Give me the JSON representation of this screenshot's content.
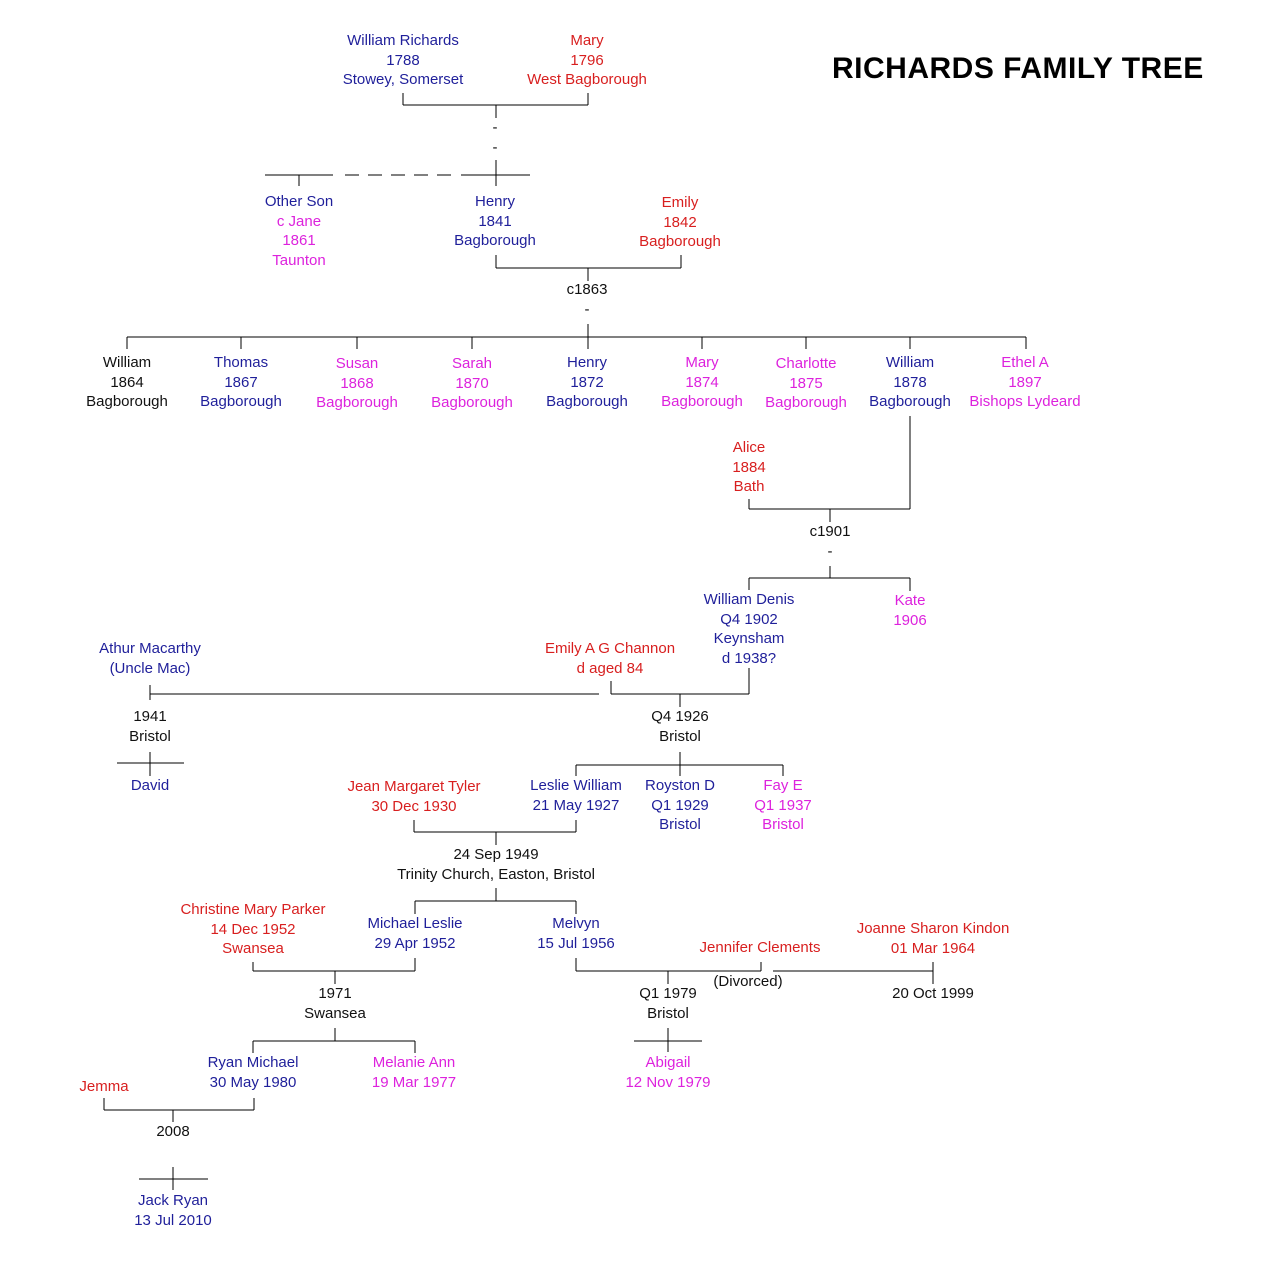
{
  "title": "RICHARDS FAMILY TREE",
  "colors": {
    "male": "#1f1f9a",
    "female": "#d81f1f",
    "daughter": "#dd22dd",
    "neutral": "#111111",
    "lines": "#000000"
  },
  "people": [
    {
      "id": "william-richards",
      "lines": [
        "William Richards",
        "1788",
        "Stowey, Somerset"
      ],
      "color": "male"
    },
    {
      "id": "mary-1796",
      "lines": [
        "Mary",
        "1796",
        "West Bagborough"
      ],
      "color": "female"
    },
    {
      "id": "other-son",
      "lines": [
        "Other Son",
        "c Jane",
        "1861",
        "Taunton"
      ],
      "color": "mixed"
    },
    {
      "id": "henry-1841",
      "lines": [
        "Henry",
        "1841",
        "Bagborough"
      ],
      "color": "male"
    },
    {
      "id": "emily-1842",
      "lines": [
        "Emily",
        "1842",
        "Bagborough"
      ],
      "color": "female"
    },
    {
      "id": "william-1864",
      "lines": [
        "William",
        "1864",
        "Bagborough"
      ],
      "color": "neutral"
    },
    {
      "id": "thomas-1867",
      "lines": [
        "Thomas",
        "1867",
        "Bagborough"
      ],
      "color": "male"
    },
    {
      "id": "susan-1868",
      "lines": [
        "Susan",
        "1868",
        "Bagborough"
      ],
      "color": "daughter"
    },
    {
      "id": "sarah-1870",
      "lines": [
        "Sarah",
        "1870",
        "Bagborough"
      ],
      "color": "daughter"
    },
    {
      "id": "henry-1872",
      "lines": [
        "Henry",
        "1872",
        "Bagborough"
      ],
      "color": "male"
    },
    {
      "id": "mary-1874",
      "lines": [
        "Mary",
        "1874",
        "Bagborough"
      ],
      "color": "daughter"
    },
    {
      "id": "charlotte-1875",
      "lines": [
        "Charlotte",
        "1875",
        "Bagborough"
      ],
      "color": "daughter"
    },
    {
      "id": "william-1878",
      "lines": [
        "William",
        "1878",
        "Bagborough"
      ],
      "color": "male"
    },
    {
      "id": "ethel-1897",
      "lines": [
        "Ethel A",
        "1897",
        "Bishops Lydeard"
      ],
      "color": "daughter"
    },
    {
      "id": "alice-1884",
      "lines": [
        "Alice",
        "1884",
        "Bath"
      ],
      "color": "female"
    },
    {
      "id": "william-denis",
      "lines": [
        "William Denis",
        "Q4 1902",
        "Keynsham",
        "d 1938?"
      ],
      "color": "male"
    },
    {
      "id": "kate-1906",
      "lines": [
        "Kate",
        "1906"
      ],
      "color": "daughter"
    },
    {
      "id": "athur-macarthy",
      "lines": [
        "Athur Macarthy",
        "(Uncle Mac)"
      ],
      "color": "male"
    },
    {
      "id": "emily-channon",
      "lines": [
        "Emily A G Channon",
        "d aged 84"
      ],
      "color": "female"
    },
    {
      "id": "david",
      "lines": [
        "David"
      ],
      "color": "male"
    },
    {
      "id": "jean-tyler",
      "lines": [
        "Jean Margaret Tyler",
        "30 Dec 1930"
      ],
      "color": "female"
    },
    {
      "id": "leslie-william",
      "lines": [
        "Leslie William",
        "21 May 1927"
      ],
      "color": "male"
    },
    {
      "id": "royston-d",
      "lines": [
        "Royston D",
        "Q1 1929",
        "Bristol"
      ],
      "color": "male"
    },
    {
      "id": "fay-e",
      "lines": [
        "Fay E",
        "Q1 1937",
        "Bristol"
      ],
      "color": "daughter"
    },
    {
      "id": "christine-parker",
      "lines": [
        "Christine Mary Parker",
        "14 Dec 1952",
        "Swansea"
      ],
      "color": "female"
    },
    {
      "id": "michael-leslie",
      "lines": [
        "Michael Leslie",
        "29 Apr 1952"
      ],
      "color": "male"
    },
    {
      "id": "melvyn",
      "lines": [
        "Melvyn",
        "15 Jul 1956"
      ],
      "color": "male"
    },
    {
      "id": "jennifer-clements",
      "lines": [
        "Jennifer Clements"
      ],
      "color": "female"
    },
    {
      "id": "joanne-kindon",
      "lines": [
        "Joanne Sharon Kindon",
        "01 Mar 1964"
      ],
      "color": "female"
    },
    {
      "id": "ryan-michael",
      "lines": [
        "Ryan Michael",
        "30 May 1980"
      ],
      "color": "male"
    },
    {
      "id": "melanie-ann",
      "lines": [
        "Melanie Ann",
        "19 Mar 1977"
      ],
      "color": "daughter"
    },
    {
      "id": "abigail",
      "lines": [
        "Abigail",
        "12 Nov 1979"
      ],
      "color": "daughter"
    },
    {
      "id": "jemma",
      "lines": [
        "Jemma"
      ],
      "color": "female"
    },
    {
      "id": "jack-ryan",
      "lines": [
        "Jack Ryan",
        "13 Jul 2010"
      ],
      "color": "male"
    }
  ],
  "marriages": [
    {
      "id": "m-1788",
      "lines": [
        "-",
        "-"
      ]
    },
    {
      "id": "m-1863",
      "lines": [
        "c1863",
        "-"
      ]
    },
    {
      "id": "m-1901",
      "lines": [
        "c1901",
        "-"
      ]
    },
    {
      "id": "m-1941",
      "lines": [
        "1941",
        "Bristol"
      ]
    },
    {
      "id": "m-1926",
      "lines": [
        "Q4 1926",
        "Bristol"
      ]
    },
    {
      "id": "m-1949",
      "lines": [
        "24 Sep 1949",
        "Trinity Church, Easton, Bristol"
      ]
    },
    {
      "id": "m-1971",
      "lines": [
        "1971",
        "Swansea"
      ]
    },
    {
      "id": "m-1979",
      "lines": [
        "Q1 1979",
        "Bristol"
      ]
    },
    {
      "id": "m-1999",
      "lines": [
        "20 Oct 1999"
      ]
    },
    {
      "id": "m-2008",
      "lines": [
        "2008"
      ]
    },
    {
      "id": "divorced",
      "lines": [
        "(Divorced)"
      ]
    }
  ]
}
